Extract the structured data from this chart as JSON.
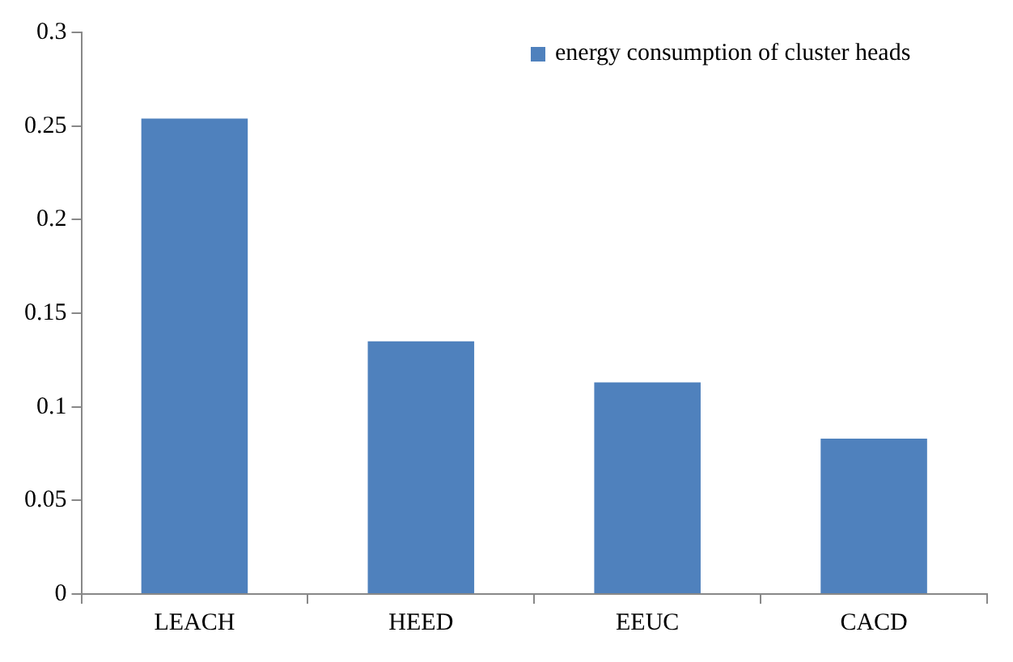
{
  "chart_data": {
    "type": "bar",
    "categories": [
      "LEACH",
      "HEED",
      "EEUC",
      "CACD"
    ],
    "series": [
      {
        "name": "energy consumption of cluster heads",
        "color": "#4f81bd",
        "values": [
          0.254,
          0.135,
          0.113,
          0.083
        ]
      }
    ],
    "ylim": [
      0,
      0.3
    ],
    "yticks": [
      0,
      0.05,
      0.1,
      0.15,
      0.2,
      0.25,
      0.3
    ],
    "legend": "top right"
  }
}
